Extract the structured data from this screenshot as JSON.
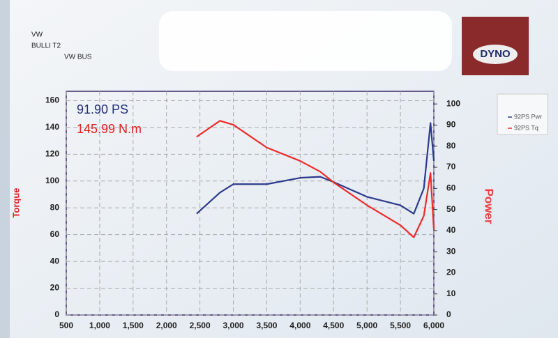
{
  "chart_data": {
    "type": "line",
    "header_lines": [
      "VW",
      "BULLI T2",
      "VW BUS"
    ],
    "logo_text": "DYNO",
    "annotations": [
      {
        "text": "91.90 PS",
        "color": "#1f2f7a"
      },
      {
        "text": "145.99 N.m",
        "color": "#e02020"
      }
    ],
    "y_label": "Torque",
    "y2_label": "Power",
    "x": [
      2450,
      2800,
      3000,
      3500,
      4000,
      4300,
      4500,
      5000,
      5500,
      5700,
      5850,
      5950,
      6000
    ],
    "series": [
      {
        "name": "92PS Pwr",
        "color": "#2c3a8c",
        "axis": "y2",
        "values": [
          48,
          58,
          62,
          62,
          65,
          65.5,
          63,
          56,
          52,
          48,
          60,
          91,
          73
        ]
      },
      {
        "name": "92PS Tq",
        "color": "#ee2a2a",
        "values": [
          133,
          145,
          142,
          125,
          115,
          107,
          99,
          82,
          67,
          58,
          74,
          106,
          64
        ]
      }
    ],
    "xlim": [
      500,
      6000
    ],
    "xticks": [
      500,
      {
        "value": 1000,
        "label": "1,000"
      },
      {
        "value": 1500,
        "label": "1,500"
      },
      {
        "value": 2000,
        "label": "2,000"
      },
      {
        "value": 2500,
        "label": "2,500"
      },
      {
        "value": 3000,
        "label": "3,000"
      },
      {
        "value": 3500,
        "label": "3,500"
      },
      {
        "value": 4000,
        "label": "4,000"
      },
      {
        "value": 4500,
        "label": "4,500"
      },
      {
        "value": 5000,
        "label": "5,000"
      },
      {
        "value": 5500,
        "label": "5,500"
      },
      {
        "value": 6000,
        "label": "6,000"
      }
    ],
    "ylim": [
      0,
      167
    ],
    "yticks": [
      0,
      20,
      40,
      60,
      80,
      100,
      120,
      140,
      160
    ],
    "y2lim": [
      0,
      106
    ],
    "y2ticks": [
      0,
      10,
      20,
      30,
      40,
      50,
      60,
      70,
      80,
      90,
      100
    ],
    "grid": true
  }
}
